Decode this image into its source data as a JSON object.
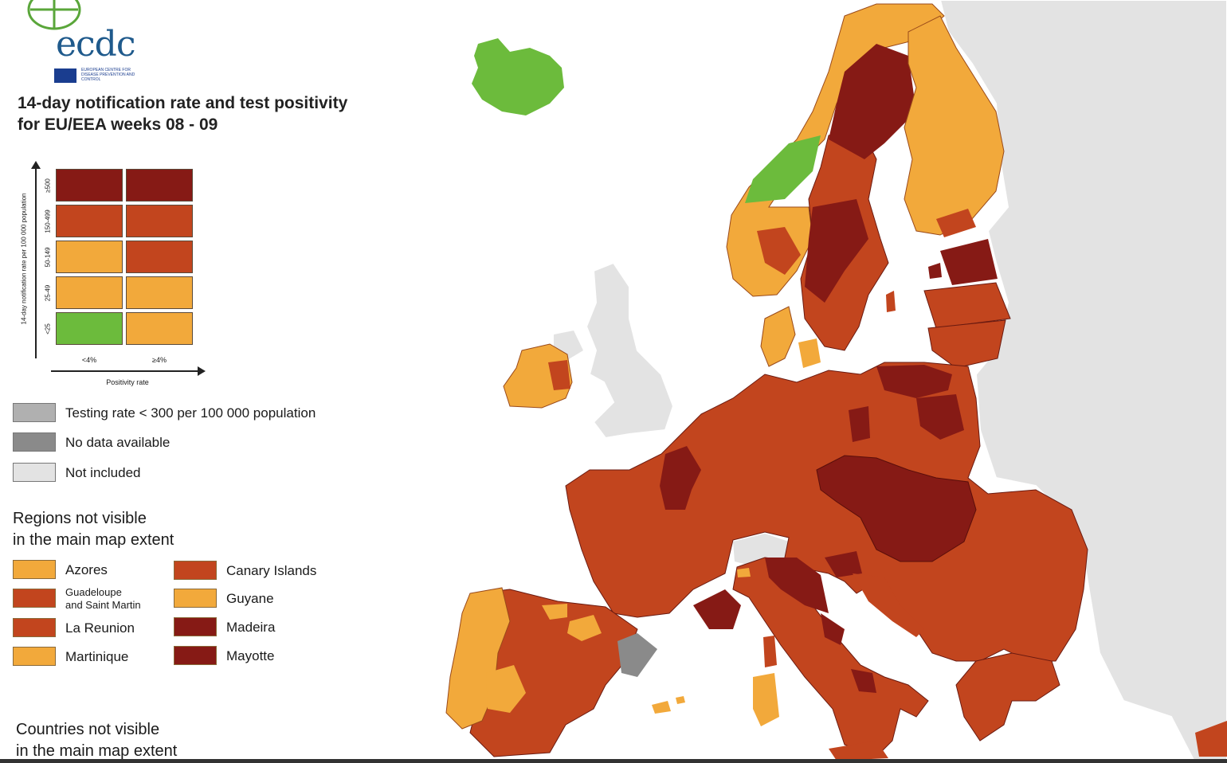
{
  "logo": {
    "text": "ecdc",
    "subtitle": "EUROPEAN CENTRE FOR DISEASE PREVENTION AND CONTROL"
  },
  "title": {
    "line1": "14-day notification rate and test positivity",
    "line2": "for EU/EEA weeks 08 - 09"
  },
  "colors": {
    "green": "#6cbb3c",
    "light_orange": "#f2a93b",
    "orange_red": "#c2451e",
    "dark_red": "#861a15",
    "grey_testing": "#b0b0b0",
    "grey_nodata": "#8a8a8a",
    "grey_excluded": "#e3e3e3",
    "water": "#ffffff"
  },
  "matrix": {
    "y_axis_label": "14-day notification rate per 100 000 population",
    "x_axis_label": "Positivity rate",
    "x_ticks": [
      "<4%",
      "≥4%"
    ],
    "y_ticks": [
      "<25",
      "25-49",
      "50-149",
      "150-499",
      "≥500"
    ],
    "rows": [
      [
        "dark_red",
        "dark_red"
      ],
      [
        "orange_red",
        "orange_red"
      ],
      [
        "light_orange",
        "orange_red"
      ],
      [
        "light_orange",
        "light_orange"
      ],
      [
        "green",
        "light_orange"
      ]
    ]
  },
  "legend": [
    {
      "label": "Testing rate < 300 per 100 000 population",
      "color_key": "grey_testing"
    },
    {
      "label": "No data available",
      "color_key": "grey_nodata"
    },
    {
      "label": "Not included",
      "color_key": "grey_excluded"
    }
  ],
  "regions_heading": {
    "line1": "Regions not visible",
    "line2": "in the main map extent"
  },
  "regions": [
    {
      "label": "Azores",
      "color_key": "light_orange"
    },
    {
      "label": "Guadeloupe and Saint Martin",
      "line1": "Guadeloupe",
      "line2": "and Saint Martin",
      "color_key": "orange_red"
    },
    {
      "label": "La Reunion",
      "color_key": "orange_red"
    },
    {
      "label": "Martinique",
      "color_key": "light_orange"
    },
    {
      "label": "Canary Islands",
      "color_key": "orange_red"
    },
    {
      "label": "Guyane",
      "color_key": "light_orange"
    },
    {
      "label": "Madeira",
      "color_key": "dark_red"
    },
    {
      "label": "Mayotte",
      "color_key": "dark_red"
    }
  ],
  "countries_heading": {
    "line1": "Countries not visible",
    "line2": "in the main map extent"
  }
}
